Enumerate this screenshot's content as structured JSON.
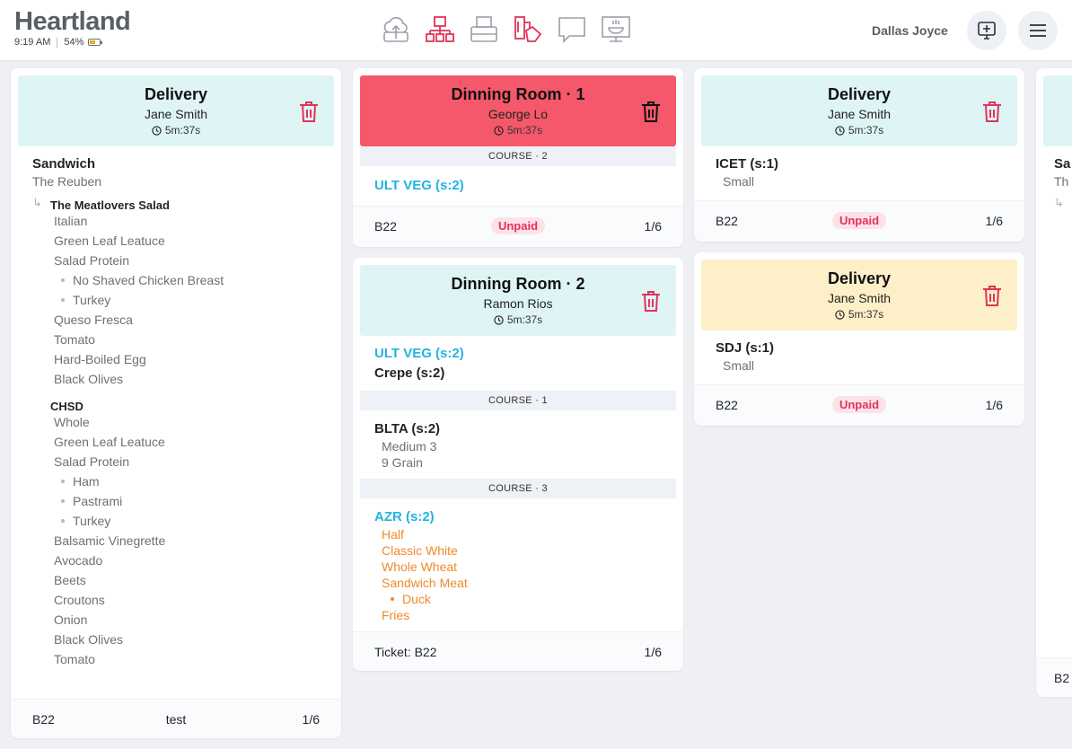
{
  "header": {
    "brand": "Heartland",
    "time": "9:19 AM",
    "battery": "54%",
    "battery_level": 0.54,
    "user_name": "Dallas Joyce",
    "tool_icons": [
      "cloud-upload-icon",
      "network-icon",
      "printer-icon",
      "kitchen-ticket-icon",
      "chat-icon",
      "kitchen-display-icon"
    ]
  },
  "colors": {
    "accent_red": "#e0335a",
    "item_cyan": "#21b4e2",
    "modifier_orange": "#ef8a2a"
  },
  "tickets": [
    {
      "title": "Delivery",
      "customer": "Jane Smith",
      "timer": "5m:37s",
      "item": "Sandwich",
      "item_sub": "The Reuben",
      "groups": [
        {
          "name": "The Meatlovers Salad",
          "mods": [
            "Italian",
            "Green Leaf Leatuce",
            "Salad Protein",
            "No Shaved Chicken Breast",
            "Turkey",
            "Queso Fresca",
            "Tomato",
            "Hard-Boiled Egg",
            "Black Olives"
          ]
        },
        {
          "name": "CHSD",
          "mods": [
            "Whole",
            "Green Leaf Leatuce",
            "Salad Protein",
            "Ham",
            "Pastrami",
            "Turkey",
            "Balsamic Vinegrette",
            "Avocado",
            "Beets",
            "Croutons",
            "Onion",
            "Black Olives",
            "Tomato"
          ]
        }
      ],
      "footer": {
        "left": "B22",
        "center": "test",
        "right": "1/6"
      }
    },
    {
      "title": "Dinning Room · 1",
      "customer": "George Lo",
      "timer": "5m:37s",
      "course": "COURSE · 2",
      "items": [
        "ULT VEG (s:2)"
      ],
      "footer": {
        "left": "B22",
        "status": "Unpaid",
        "right": "1/6"
      }
    },
    {
      "title": "Dinning Room · 2",
      "customer": "Ramon Rios",
      "timer": "5m:37s",
      "items": [
        "ULT VEG (s:2)",
        "Crepe (s:2)"
      ],
      "course1": "COURSE · 1",
      "blta": {
        "name": "BLTA (s:2)",
        "mods": [
          "Medium 3",
          "9 Grain"
        ]
      },
      "course3": "COURSE · 3",
      "azr": {
        "name": "AZR (s:2)",
        "mods": [
          "Half",
          "Classic White",
          "Whole Wheat",
          "Sandwich Meat",
          "Duck",
          "Fries"
        ]
      },
      "footer": {
        "left": "Ticket: B22",
        "right": "1/6"
      }
    },
    {
      "title": "Delivery",
      "customer": "Jane Smith",
      "timer": "5m:37s",
      "item": "ICET (s:1)",
      "item_sub": "Small",
      "footer": {
        "left": "B22",
        "status": "Unpaid",
        "right": "1/6"
      }
    },
    {
      "title": "Delivery",
      "customer": "Jane Smith",
      "timer": "5m:37s",
      "item": "SDJ (s:1)",
      "item_sub": "Small",
      "footer": {
        "left": "B22",
        "status": "Unpaid",
        "right": "1/6"
      }
    },
    {
      "item_partial": "Sa",
      "item_sub_partial": "Th",
      "footer_partial": "B2"
    }
  ]
}
